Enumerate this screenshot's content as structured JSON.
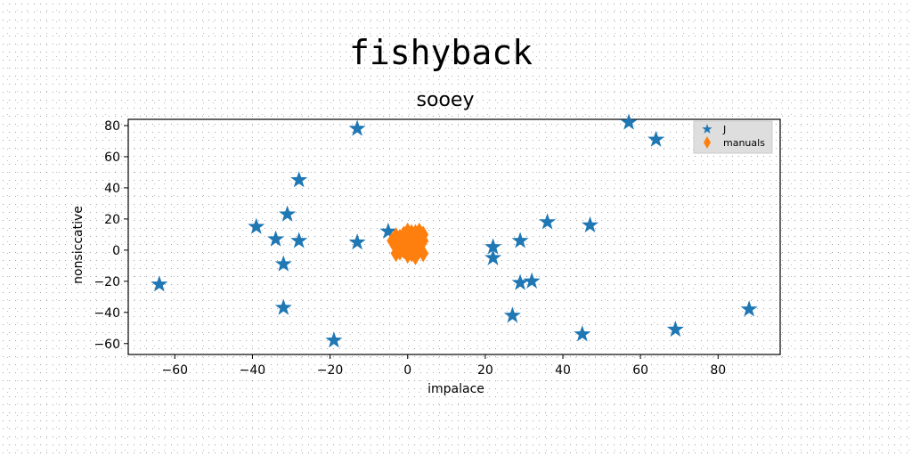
{
  "chart_data": {
    "type": "scatter",
    "suptitle": "fishyback",
    "title": "sooey",
    "xlabel": "impalace",
    "ylabel": "nonsiccative",
    "xlim": [
      -72,
      96
    ],
    "ylim": [
      -67,
      84
    ],
    "xticks": [
      -60,
      -40,
      -20,
      0,
      20,
      40,
      60,
      80
    ],
    "yticks": [
      -60,
      -40,
      -20,
      0,
      20,
      40,
      60,
      80
    ],
    "grid": false,
    "legend_position": "top-right",
    "series": [
      {
        "name": "J",
        "marker": "star",
        "color": "#1f77b4",
        "points": [
          [
            -64,
            -22
          ],
          [
            -13,
            78
          ],
          [
            -28,
            45
          ],
          [
            -39,
            15
          ],
          [
            -34,
            7
          ],
          [
            -31,
            23
          ],
          [
            -28,
            6
          ],
          [
            -32,
            -9
          ],
          [
            -32,
            -37
          ],
          [
            -19,
            -58
          ],
          [
            -13,
            5
          ],
          [
            -5,
            12
          ],
          [
            22,
            2
          ],
          [
            22,
            -5
          ],
          [
            29,
            6
          ],
          [
            36,
            18
          ],
          [
            47,
            16
          ],
          [
            29,
            -21
          ],
          [
            32,
            -20
          ],
          [
            27,
            -42
          ],
          [
            45,
            -54
          ],
          [
            57,
            82
          ],
          [
            64,
            71
          ],
          [
            69,
            -51
          ],
          [
            88,
            -38
          ]
        ]
      },
      {
        "name": "manuals",
        "marker": "diamond",
        "color": "#ff7f0e",
        "points": [
          [
            -4,
            6
          ],
          [
            -3,
            2
          ],
          [
            -3,
            9
          ],
          [
            -2,
            -1
          ],
          [
            -2,
            4
          ],
          [
            -1,
            10
          ],
          [
            -1,
            0
          ],
          [
            0,
            7
          ],
          [
            0,
            -3
          ],
          [
            0,
            3
          ],
          [
            1,
            11
          ],
          [
            1,
            5
          ],
          [
            1,
            -2
          ],
          [
            2,
            1
          ],
          [
            2,
            8
          ],
          [
            2,
            -4
          ],
          [
            3,
            4
          ],
          [
            3,
            12
          ],
          [
            3,
            0
          ],
          [
            4,
            6
          ],
          [
            4,
            -2
          ],
          [
            -1,
            5
          ],
          [
            1,
            2
          ],
          [
            -3,
            -2
          ],
          [
            0,
            12
          ],
          [
            2,
            11
          ],
          [
            -2,
            8
          ],
          [
            4,
            10
          ]
        ]
      }
    ]
  }
}
